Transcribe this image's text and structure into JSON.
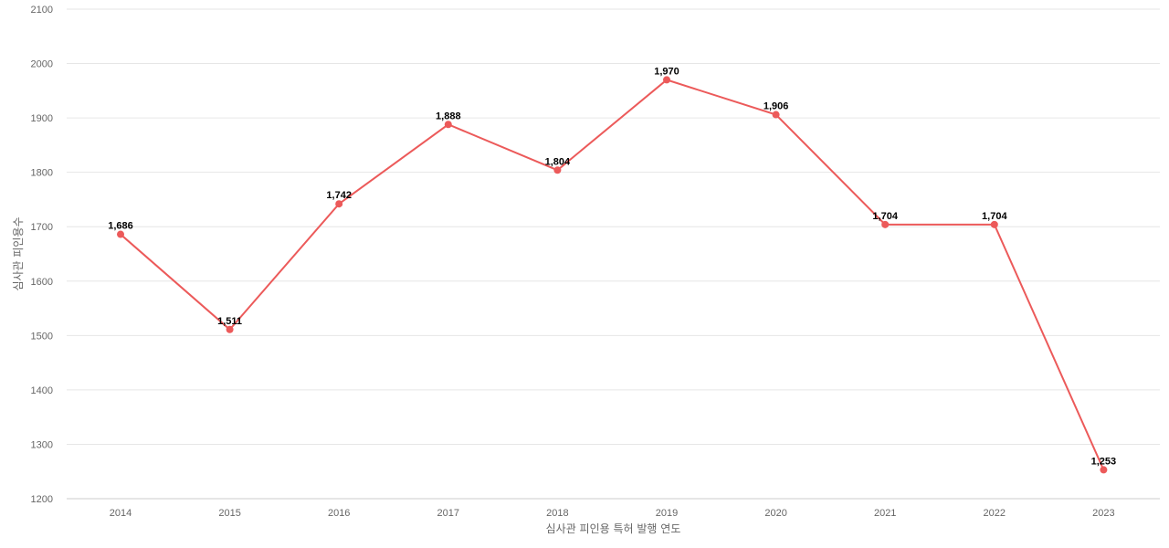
{
  "chart_data": {
    "type": "line",
    "title": "",
    "xlabel": "심사관 피인용 특허 발행 연도",
    "ylabel": "심사관 피인용수",
    "ylim": [
      1200,
      2100
    ],
    "yticks": [
      1200,
      1300,
      1400,
      1500,
      1600,
      1700,
      1800,
      1900,
      2000,
      2100
    ],
    "grid": true,
    "legend": "none",
    "categories": [
      "2014",
      "2015",
      "2016",
      "2017",
      "2018",
      "2019",
      "2020",
      "2021",
      "2022",
      "2023"
    ],
    "series": [
      {
        "color": "#ec5a5a",
        "values": [
          1686,
          1511,
          1742,
          1888,
          1804,
          1970,
          1906,
          1704,
          1704,
          1253
        ],
        "labels": [
          "1,686",
          "1,511",
          "1,742",
          "1,888",
          "1,804",
          "1,970",
          "1,906",
          "1,704",
          "1,704",
          "1,253"
        ]
      }
    ]
  }
}
